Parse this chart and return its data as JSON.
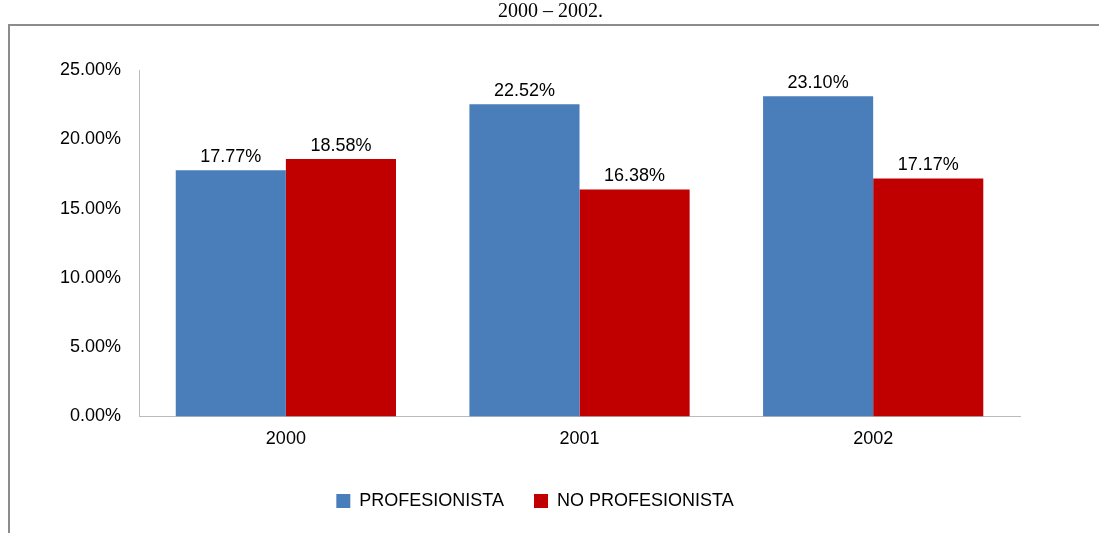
{
  "chart_data": {
    "type": "bar",
    "title": "2000 – 2002.",
    "categories": [
      "2000",
      "2001",
      "2002"
    ],
    "series": [
      {
        "name": "PROFESIONISTA",
        "color": "#4a7ebb",
        "values": [
          17.77,
          22.52,
          23.1
        ],
        "value_labels": [
          "17.77%",
          "22.52%",
          "23.10%"
        ]
      },
      {
        "name": "NO PROFESIONISTA",
        "color": "#c00000",
        "values": [
          18.58,
          16.38,
          17.17
        ],
        "value_labels": [
          "18.58%",
          "16.38%",
          "17.17%"
        ]
      }
    ],
    "ylim": [
      0,
      25
    ],
    "yticks": [
      {
        "value": 0,
        "label": "0.00%"
      },
      {
        "value": 5,
        "label": "5.00%"
      },
      {
        "value": 10,
        "label": "10.00%"
      },
      {
        "value": 15,
        "label": "15.00%"
      },
      {
        "value": 20,
        "label": "20.00%"
      },
      {
        "value": 25,
        "label": "25.00%"
      }
    ],
    "grid": false,
    "legend": "bottom"
  }
}
